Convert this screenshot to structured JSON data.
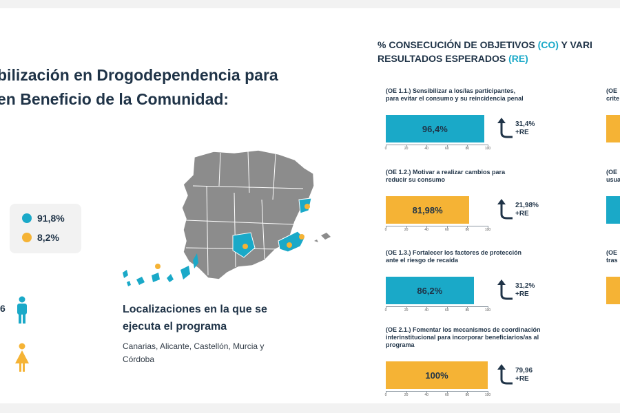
{
  "main_title": {
    "line1": "bilización en Drogodependencia para",
    "line2": "en Beneficio de la Comunidad:"
  },
  "gender_legend": {
    "items": [
      {
        "label": "91,8%",
        "color": "#1aa9c8",
        "value": 91.8
      },
      {
        "label": "8,2%",
        "color": "#f5b335",
        "value": 8.2
      }
    ]
  },
  "partial_value": "6",
  "locations": {
    "title_line1": "Localizaciones en la que se",
    "title_line2": "ejecuta el programa",
    "sub_line1": "Canarias, Alicante, Castellón, Murcia y",
    "sub_line2": "Córdoba"
  },
  "colors": {
    "teal": "#1aa9c8",
    "orange": "#f5b335",
    "navy": "#1f3347",
    "map_gray": "#8c8c8c"
  },
  "chart_data": {
    "type": "bar",
    "orientation": "horizontal",
    "title": {
      "part1": "% CONSECUCIÓN DE OBJETIVOS ",
      "part2": "(CO)",
      "part3": " Y VARI",
      "line2_part1": "RESULTADOS ESPERADOS ",
      "line2_part2": "(RE)"
    },
    "xlim": [
      0,
      100
    ],
    "ticks": [
      0,
      20,
      40,
      60,
      80,
      100
    ],
    "tick_labels": [
      "0",
      "20",
      "40",
      "60",
      "80",
      "100"
    ],
    "objectives": [
      {
        "label_lines": [
          "(OE 1.1.) Sensibilizar a los/las participantes,",
          "para evitar el consumo y su reincidencia penal"
        ],
        "value": 96.4,
        "value_label": "96,4%",
        "color": "#1aa9c8",
        "re_value": "31,4%",
        "re_label": "+RE"
      },
      {
        "label_lines": [
          "(OE 1.2.) Motivar a realizar cambios para",
          "reducir su consumo"
        ],
        "value": 81.98,
        "value_label": "81,98%",
        "color": "#f5b335",
        "re_value": "21,98%",
        "re_label": "+RE"
      },
      {
        "label_lines": [
          "(OE 1.3.) Fortalecer los factores de protección",
          "ante el riesgo de recaída"
        ],
        "value": 86.2,
        "value_label": "86,2%",
        "color": "#1aa9c8",
        "re_value": "31,2%",
        "re_label": "+RE"
      },
      {
        "label_lines": [
          "(OE 2.1.) Fomentar los mecanismos de coordinación",
          "interinstitucional para incorporar beneficiarios/as al",
          "programa"
        ],
        "value": 100,
        "value_label": "100%",
        "color": "#f5b335",
        "re_value": "79,96",
        "re_label": "+RE"
      }
    ],
    "right_column": [
      {
        "label_lines": [
          "(OE",
          "crite"
        ],
        "color": "#f5b335"
      },
      {
        "label_lines": [
          "(OE",
          "usua"
        ],
        "color": "#1aa9c8"
      },
      {
        "label_lines": [
          "(OE",
          "tras"
        ],
        "color": "#f5b335"
      }
    ]
  }
}
